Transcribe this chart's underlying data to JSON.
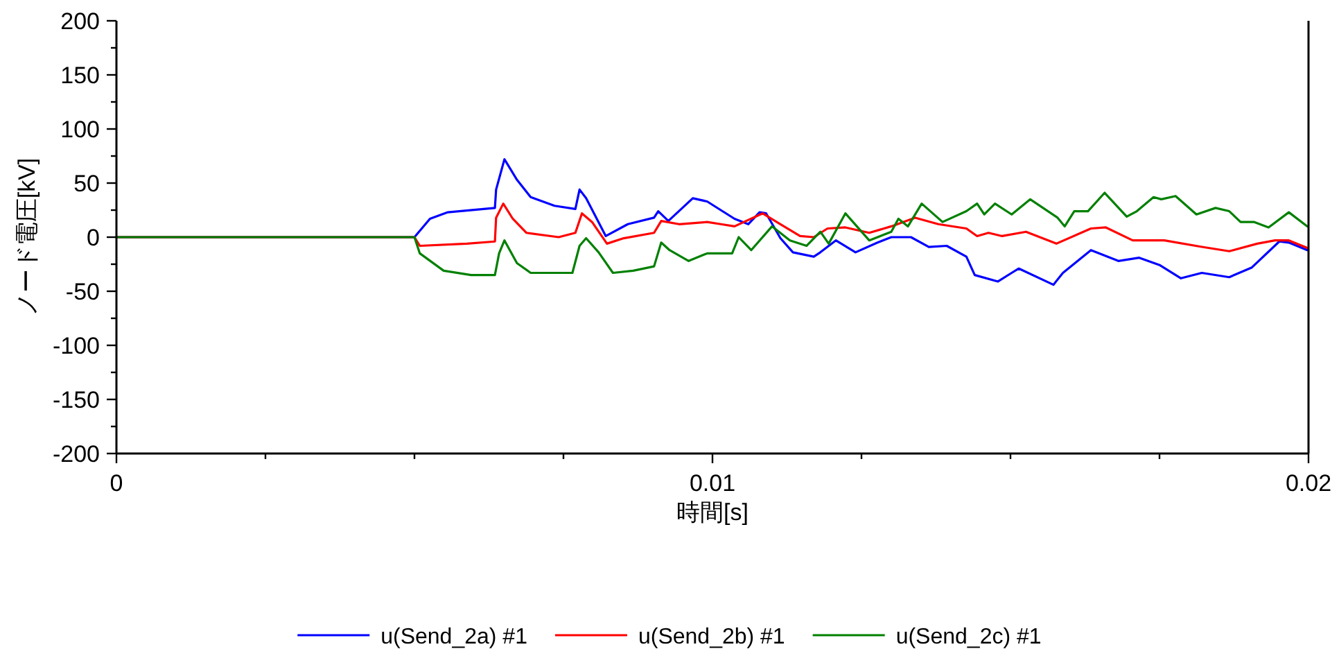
{
  "chart_data": {
    "type": "line",
    "xlabel": "時間[s]",
    "ylabel": "ノード電圧[kV]",
    "xlim": [
      0,
      0.02
    ],
    "ylim": [
      -200,
      200
    ],
    "xticks": [
      0,
      {
        "value": 0.0025,
        "label": null
      },
      {
        "value": 0.005,
        "label": null
      },
      {
        "value": 0.0075,
        "label": null
      },
      {
        "value": 0.01,
        "label": "0.01"
      },
      {
        "value": 0.0125,
        "label": null
      },
      {
        "value": 0.015,
        "label": null
      },
      {
        "value": 0.0175,
        "label": null
      },
      {
        "value": 0.02,
        "label": "0.02"
      }
    ],
    "yticks": [
      -200,
      {
        "value": -175,
        "label": null
      },
      -150,
      {
        "value": -125,
        "label": null
      },
      -100,
      {
        "value": -75,
        "label": null
      },
      -50,
      {
        "value": -25,
        "label": null
      },
      0,
      {
        "value": 25,
        "label": null
      },
      50,
      {
        "value": 75,
        "label": null
      },
      100,
      {
        "value": 125,
        "label": null
      },
      150,
      {
        "value": 175,
        "label": null
      },
      200
    ],
    "grid": false,
    "legend": "bottom",
    "line_style": "solid",
    "series": [
      {
        "name": "u(Send_2a) #1",
        "color": "#0000ff",
        "x": [
          0,
          0.005,
          0.00526,
          0.00556,
          0.00635,
          0.00637,
          0.00651,
          0.00672,
          0.00695,
          0.00735,
          0.0077,
          0.00777,
          0.00788,
          0.00821,
          0.00858,
          0.00902,
          0.00909,
          0.00926,
          0.00967,
          0.00991,
          0.01014,
          0.01037,
          0.0106,
          0.01079,
          0.0109,
          0.01114,
          0.01135,
          0.0117,
          0.01181,
          0.01207,
          0.0124,
          0.01277,
          0.013,
          0.01333,
          0.01363,
          0.01393,
          0.01426,
          0.0144,
          0.01479,
          0.01502,
          0.01514,
          0.01572,
          0.01588,
          0.01635,
          0.01681,
          0.01716,
          0.01751,
          0.01786,
          0.01821,
          0.01867,
          0.01905,
          0.01951,
          0.01967,
          0.01998
        ],
        "values": [
          0,
          0,
          17,
          23,
          27,
          44,
          72,
          53,
          37,
          29,
          26,
          44,
          36,
          1,
          12,
          18,
          24,
          15,
          36,
          33,
          25,
          17,
          12,
          23,
          22,
          -1,
          -14,
          -18,
          -14,
          -3,
          -14,
          -5,
          0,
          0,
          -9,
          -8,
          -18,
          -35,
          -41,
          -33,
          -29,
          -44,
          -33,
          -12,
          -22,
          -19,
          -26,
          -38,
          -33,
          -37,
          -28,
          -4,
          -5,
          -12
        ]
      },
      {
        "name": "u(Send_2b) #1",
        "color": "#ff0000",
        "x": [
          0,
          0.005,
          0.00509,
          0.00588,
          0.00635,
          0.00637,
          0.00649,
          0.00665,
          0.00688,
          0.00742,
          0.0077,
          0.00781,
          0.00798,
          0.00823,
          0.00851,
          0.00902,
          0.00914,
          0.00944,
          0.00991,
          0.01014,
          0.01037,
          0.01084,
          0.01114,
          0.01147,
          0.0117,
          0.01193,
          0.01223,
          0.01263,
          0.013,
          0.0134,
          0.01379,
          0.01426,
          0.01444,
          0.01463,
          0.01486,
          0.01526,
          0.01577,
          0.01635,
          0.0166,
          0.01705,
          0.01758,
          0.01821,
          0.01867,
          0.01914,
          0.01944,
          0.01967,
          0.01998
        ],
        "values": [
          0,
          0,
          -8,
          -6,
          -4,
          18,
          31,
          17,
          4,
          0,
          4,
          22,
          14,
          -6,
          -1,
          4,
          15,
          12,
          14,
          12,
          10,
          22,
          12,
          1,
          0,
          8,
          9,
          4,
          10,
          18,
          12,
          8,
          1,
          4,
          1,
          5,
          -6,
          8,
          9,
          -3,
          -3,
          -9,
          -13,
          -6,
          -3,
          -3,
          -10
        ]
      },
      {
        "name": "u(Send_2c) #1",
        "color": "#008000",
        "x": [
          0,
          0.005,
          0.00509,
          0.00549,
          0.00595,
          0.00635,
          0.00642,
          0.00651,
          0.00672,
          0.00695,
          0.00765,
          0.00777,
          0.00788,
          0.00809,
          0.00833,
          0.00867,
          0.00902,
          0.00914,
          0.00928,
          0.0096,
          0.00991,
          0.01033,
          0.01044,
          0.01065,
          0.011,
          0.0113,
          0.01158,
          0.01181,
          0.01195,
          0.01223,
          0.01263,
          0.013,
          0.01312,
          0.01328,
          0.01351,
          0.01386,
          0.01426,
          0.01444,
          0.01456,
          0.01474,
          0.01502,
          0.01533,
          0.01579,
          0.01591,
          0.01607,
          0.0163,
          0.01658,
          0.01695,
          0.01712,
          0.0174,
          0.01753,
          0.01777,
          0.01812,
          0.01844,
          0.01867,
          0.01886,
          0.01909,
          0.01933,
          0.01967,
          0.01998
        ],
        "values": [
          0,
          0,
          -15,
          -31,
          -35,
          -35,
          -15,
          -3,
          -24,
          -33,
          -33,
          -8,
          -1,
          -14,
          -33,
          -31,
          -27,
          -5,
          -12,
          -22,
          -15,
          -15,
          0,
          -12,
          10,
          -3,
          -8,
          5,
          -6,
          22,
          -3,
          5,
          17,
          10,
          31,
          14,
          24,
          31,
          21,
          31,
          21,
          35,
          18,
          10,
          24,
          24,
          41,
          19,
          24,
          37,
          35,
          38,
          21,
          27,
          24,
          14,
          14,
          9,
          23,
          10
        ]
      }
    ]
  }
}
